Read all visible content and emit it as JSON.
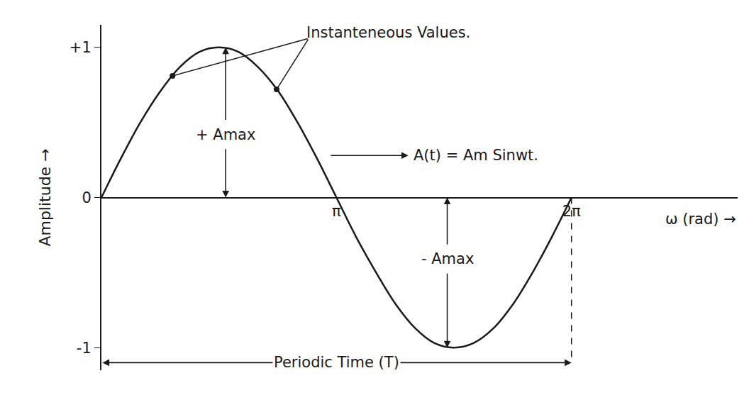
{
  "chart_data": {
    "type": "line",
    "color": "#1a1a1a",
    "xlabel": "ω (rad) →",
    "ylabel": "Amplitude →",
    "x": [
      0,
      0.26,
      0.52,
      0.79,
      1.05,
      1.31,
      1.57,
      1.83,
      2.09,
      2.36,
      2.62,
      2.88,
      3.14,
      3.4,
      3.67,
      3.93,
      4.19,
      4.45,
      4.71,
      4.97,
      5.24,
      5.5,
      5.76,
      6.02,
      6.28
    ],
    "values": [
      0,
      0.26,
      0.5,
      0.71,
      0.87,
      0.97,
      1.0,
      0.97,
      0.87,
      0.71,
      0.5,
      0.26,
      0,
      -0.26,
      -0.5,
      -0.71,
      -0.87,
      -0.97,
      -1.0,
      -0.97,
      -0.87,
      -0.71,
      -0.5,
      -0.26,
      0
    ],
    "xlim": [
      0,
      8.5
    ],
    "ylim": [
      -1.15,
      1.15
    ],
    "xticks": [
      {
        "value": 3.14,
        "label": "π"
      },
      {
        "value": 6.28,
        "label": "2π"
      }
    ],
    "yticks": [
      {
        "value": 1,
        "label": "+1"
      },
      0,
      -1
    ],
    "grid": false,
    "points": {
      "text": "Instanteneous Values.",
      "label_x": 2.72,
      "label_y": 1.1,
      "x": [
        0.95,
        2.34
      ],
      "values": [
        0.81,
        0.72
      ]
    },
    "peak_arrows": [
      {
        "text": "+ Amax",
        "x": 1.66,
        "value": 1,
        "label_y": 0.42
      },
      {
        "text": "- Amax",
        "x": 4.62,
        "value": -1,
        "label_y": -0.41
      }
    ],
    "equation": {
      "text": "A(t) = Am Sinwt.",
      "from_x": 3.05,
      "x": 4.15,
      "y": 0.28
    },
    "period": {
      "text": "Periodic Time (T)",
      "from": 0,
      "to": 6.28,
      "y": -1.1
    }
  }
}
